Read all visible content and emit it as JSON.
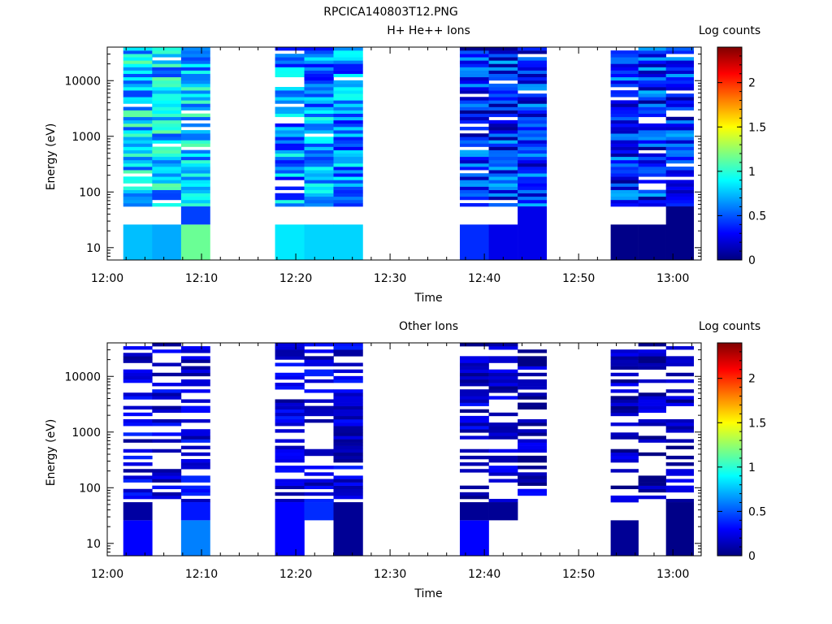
{
  "figure_title": "RPCICA140803T12.PNG",
  "chart_data": [
    {
      "type": "heatmap",
      "title": "H+ He++ Ions",
      "colorbar_label": "Log counts",
      "xlabel": "Time",
      "ylabel": "Energy (eV)",
      "x_ticks": [
        "12:00",
        "12:10",
        "12:20",
        "12:30",
        "12:40",
        "12:50",
        "13:00"
      ],
      "y_ticks": [
        "10",
        "100",
        "1000",
        "10000"
      ],
      "yscale": "log",
      "ylim": [
        6,
        40000
      ],
      "xlim_minutes": [
        0,
        63
      ],
      "colorbar_range": [
        0,
        2.4
      ],
      "colorbar_ticks": [
        "0",
        "0.5",
        "1",
        "1.5",
        "2"
      ],
      "time_blocks": [
        {
          "start": "12:01.7",
          "end": "12:10.9",
          "columns": 3
        },
        {
          "start": "12:17.8",
          "end": "12:27.1",
          "columns": 3
        },
        {
          "start": "12:37.4",
          "end": "12:46.6",
          "columns": 3
        },
        {
          "start": "12:53.4",
          "end": "13:02.2",
          "columns": 3
        }
      ],
      "typical_log_counts": [
        0.75,
        0.6,
        0.35,
        0.35
      ],
      "cells": [
        {
          "t": "12:03",
          "e_lo": 6,
          "e_hi": 26,
          "v": 0.75
        },
        {
          "t": "12:06",
          "e_lo": 6,
          "e_hi": 26,
          "v": 0.7
        },
        {
          "t": "12:09",
          "e_lo": 6,
          "e_hi": 26,
          "v": 1.15
        },
        {
          "t": "12:09",
          "e_lo": 26,
          "e_hi": 55,
          "v": 0.45
        },
        {
          "t": "12:20",
          "e_lo": 6,
          "e_hi": 26,
          "v": 0.85
        },
        {
          "t": "12:23",
          "e_lo": 6,
          "e_hi": 26,
          "v": 0.8
        },
        {
          "t": "12:26",
          "e_lo": 6,
          "e_hi": 26,
          "v": 0.8
        },
        {
          "t": "12:38",
          "e_lo": 6,
          "e_hi": 26,
          "v": 0.4
        },
        {
          "t": "12:41",
          "e_lo": 6,
          "e_hi": 26,
          "v": 0.25
        },
        {
          "t": "12:44",
          "e_lo": 6,
          "e_hi": 55,
          "v": 0.25
        },
        {
          "t": "12:55",
          "e_lo": 6,
          "e_hi": 26,
          "v": 0.02
        },
        {
          "t": "12:58",
          "e_lo": 6,
          "e_hi": 26,
          "v": 0.02
        },
        {
          "t": "13:01",
          "e_lo": 6,
          "e_hi": 55,
          "v": 0.02
        }
      ]
    },
    {
      "type": "heatmap",
      "title": "Other Ions",
      "colorbar_label": "Log counts",
      "xlabel": "Time",
      "ylabel": "Energy (eV)",
      "x_ticks": [
        "12:00",
        "12:10",
        "12:20",
        "12:30",
        "12:40",
        "12:50",
        "13:00"
      ],
      "y_ticks": [
        "10",
        "100",
        "1000",
        "10000"
      ],
      "yscale": "log",
      "ylim": [
        6,
        40000
      ],
      "xlim_minutes": [
        0,
        63
      ],
      "colorbar_range": [
        0,
        2.4
      ],
      "colorbar_ticks": [
        "0",
        "0.5",
        "1",
        "1.5",
        "2"
      ],
      "time_blocks": [
        {
          "start": "12:01.7",
          "end": "12:10.9",
          "columns": 3
        },
        {
          "start": "12:17.8",
          "end": "12:27.1",
          "columns": 3
        },
        {
          "start": "12:37.4",
          "end": "12:46.6",
          "columns": 3
        },
        {
          "start": "12:53.4",
          "end": "13:02.2",
          "columns": 3
        }
      ],
      "typical_log_counts": [
        0.2,
        0.2,
        0.15,
        0.1
      ],
      "cells": [
        {
          "t": "12:03",
          "e_lo": 6,
          "e_hi": 26,
          "v": 0.3
        },
        {
          "t": "12:03",
          "e_lo": 26,
          "e_hi": 55,
          "v": 0.08
        },
        {
          "t": "12:09",
          "e_lo": 6,
          "e_hi": 26,
          "v": 0.6
        },
        {
          "t": "12:09",
          "e_lo": 26,
          "e_hi": 55,
          "v": 0.35
        },
        {
          "t": "12:20",
          "e_lo": 6,
          "e_hi": 55,
          "v": 0.3
        },
        {
          "t": "12:23",
          "e_lo": 26,
          "e_hi": 55,
          "v": 0.4
        },
        {
          "t": "12:26",
          "e_lo": 6,
          "e_hi": 55,
          "v": 0.05
        },
        {
          "t": "12:38",
          "e_lo": 6,
          "e_hi": 26,
          "v": 0.3
        },
        {
          "t": "12:38",
          "e_lo": 26,
          "e_hi": 55,
          "v": 0.05
        },
        {
          "t": "12:42",
          "e_lo": 26,
          "e_hi": 55,
          "v": 0.05
        },
        {
          "t": "12:55",
          "e_lo": 6,
          "e_hi": 26,
          "v": 0.05
        },
        {
          "t": "13:01",
          "e_lo": 6,
          "e_hi": 55,
          "v": 0.02
        }
      ]
    }
  ],
  "colors": {
    "colormap": [
      "#00007f",
      "#0000ff",
      "#007fff",
      "#00ffff",
      "#7fff7f",
      "#ffff00",
      "#ff7f00",
      "#ff0000",
      "#7f0000"
    ],
    "axis": "#000000",
    "background": "#ffffff"
  }
}
